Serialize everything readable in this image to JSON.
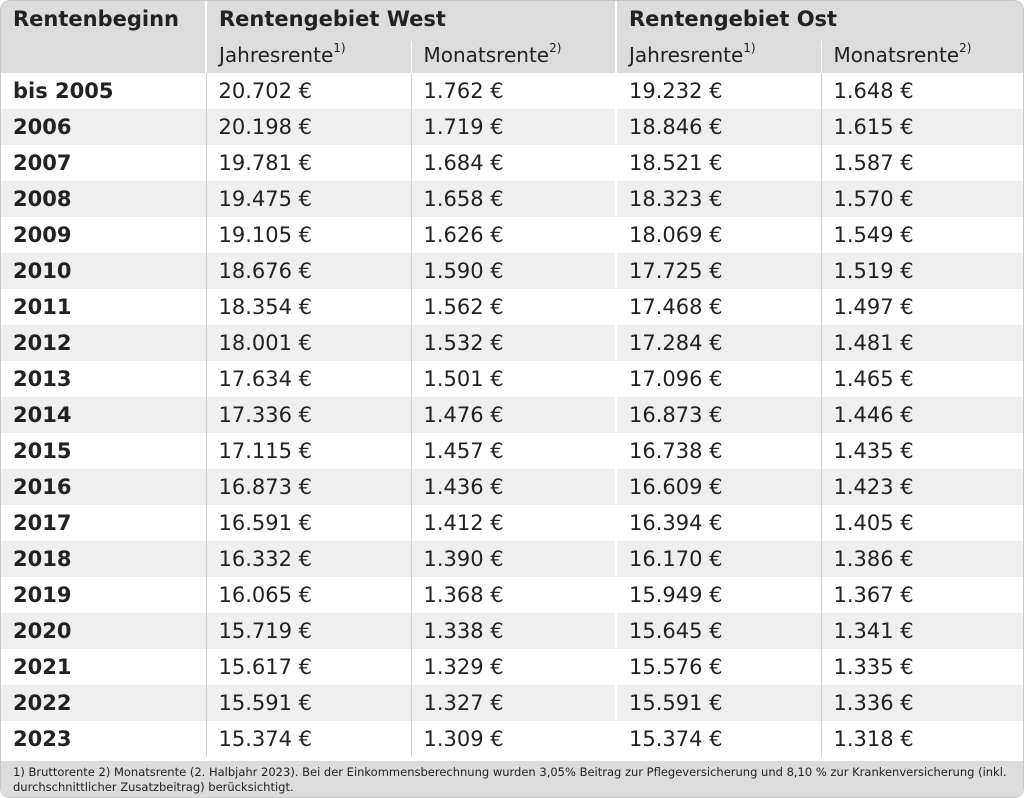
{
  "table": {
    "header": {
      "row_label": "Rentenbeginn",
      "west_label": "Rentengebiet West",
      "ost_label": "Rentengebiet Ost",
      "annual_label": "Jahresrente",
      "annual_note": "1)",
      "monthly_label": "Monatsrente",
      "monthly_note": "2)"
    },
    "rows": [
      {
        "year": "bis 2005",
        "west_annual": "20.702 €",
        "west_monthly": "1.762 €",
        "ost_annual": "19.232 €",
        "ost_monthly": "1.648 €"
      },
      {
        "year": "2006",
        "west_annual": "20.198 €",
        "west_monthly": "1.719 €",
        "ost_annual": "18.846 €",
        "ost_monthly": "1.615 €"
      },
      {
        "year": "2007",
        "west_annual": "19.781 €",
        "west_monthly": "1.684 €",
        "ost_annual": "18.521 €",
        "ost_monthly": "1.587 €"
      },
      {
        "year": "2008",
        "west_annual": "19.475 €",
        "west_monthly": "1.658 €",
        "ost_annual": "18.323 €",
        "ost_monthly": "1.570 €"
      },
      {
        "year": "2009",
        "west_annual": "19.105 €",
        "west_monthly": "1.626 €",
        "ost_annual": "18.069 €",
        "ost_monthly": "1.549 €"
      },
      {
        "year": "2010",
        "west_annual": "18.676 €",
        "west_monthly": "1.590 €",
        "ost_annual": "17.725 €",
        "ost_monthly": "1.519 €"
      },
      {
        "year": "2011",
        "west_annual": "18.354 €",
        "west_monthly": "1.562 €",
        "ost_annual": "17.468 €",
        "ost_monthly": "1.497 €"
      },
      {
        "year": "2012",
        "west_annual": "18.001 €",
        "west_monthly": "1.532 €",
        "ost_annual": "17.284 €",
        "ost_monthly": "1.481 €"
      },
      {
        "year": "2013",
        "west_annual": "17.634 €",
        "west_monthly": "1.501 €",
        "ost_annual": "17.096 €",
        "ost_monthly": "1.465 €"
      },
      {
        "year": "2014",
        "west_annual": "17.336 €",
        "west_monthly": "1.476 €",
        "ost_annual": "16.873 €",
        "ost_monthly": "1.446 €"
      },
      {
        "year": "2015",
        "west_annual": "17.115 €",
        "west_monthly": "1.457 €",
        "ost_annual": "16.738 €",
        "ost_monthly": "1.435 €"
      },
      {
        "year": "2016",
        "west_annual": "16.873 €",
        "west_monthly": "1.436 €",
        "ost_annual": "16.609 €",
        "ost_monthly": "1.423 €"
      },
      {
        "year": "2017",
        "west_annual": "16.591 €",
        "west_monthly": "1.412 €",
        "ost_annual": "16.394 €",
        "ost_monthly": "1.405 €"
      },
      {
        "year": "2018",
        "west_annual": "16.332 €",
        "west_monthly": "1.390 €",
        "ost_annual": "16.170 €",
        "ost_monthly": "1.386 €"
      },
      {
        "year": "2019",
        "west_annual": "16.065 €",
        "west_monthly": "1.368 €",
        "ost_annual": "15.949 €",
        "ost_monthly": "1.367 €"
      },
      {
        "year": "2020",
        "west_annual": "15.719 €",
        "west_monthly": "1.338 €",
        "ost_annual": "15.645 €",
        "ost_monthly": "1.341 €"
      },
      {
        "year": "2021",
        "west_annual": "15.617 €",
        "west_monthly": "1.329 €",
        "ost_annual": "15.576 €",
        "ost_monthly": "1.335 €"
      },
      {
        "year": "2022",
        "west_annual": "15.591 €",
        "west_monthly": "1.327 €",
        "ost_annual": "15.591 €",
        "ost_monthly": "1.336 €"
      },
      {
        "year": "2023",
        "west_annual": "15.374 €",
        "west_monthly": "1.309 €",
        "ost_annual": "15.374 €",
        "ost_monthly": "1.318 €"
      }
    ],
    "footnote_line1": "1) Bruttorente  2) Monatsrente (2. Halbjahr 2023). Bei der Einkommensberechnung wurden 3,05% Beitrag zur Pflegeversicherung und 8,10 % zur Krankenversicherung (inkl.",
    "footnote_line2": "durchschnittlicher Zusatzbeitrag) berücksichtigt."
  }
}
